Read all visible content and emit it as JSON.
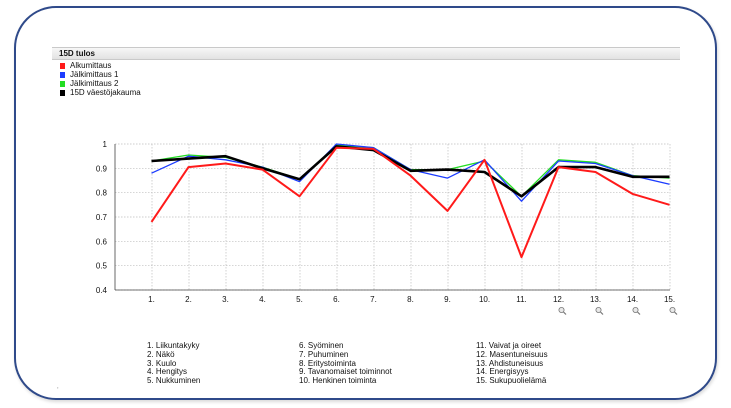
{
  "panel": {
    "title": "15D tulos"
  },
  "legend": [
    {
      "label": "Alkumittaus",
      "color": "#ff1a1a"
    },
    {
      "label": "Jälkimittaus 1",
      "color": "#1c3cff"
    },
    {
      "label": "Jälkimittaus 2",
      "color": "#22dd22"
    },
    {
      "label": "15D väestöjakauma",
      "color": "#000000"
    }
  ],
  "chart_data": {
    "type": "line",
    "categories": [
      "1.",
      "2.",
      "3.",
      "4.",
      "5.",
      "6.",
      "7.",
      "8.",
      "9.",
      "10.",
      "11.",
      "12.",
      "13.",
      "14.",
      "15."
    ],
    "ylim": [
      0.4,
      1
    ],
    "yticks": [
      "0.4",
      "0.5",
      "0.6",
      "0.7",
      "0.8",
      "0.9",
      "1"
    ],
    "grid": true,
    "series": [
      {
        "name": "Jälkimittaus 2",
        "color": "#22dd22",
        "values": [
          0.93,
          0.955,
          0.945,
          0.905,
          0.855,
          0.995,
          0.985,
          0.895,
          0.895,
          0.93,
          0.785,
          0.935,
          0.925,
          0.87,
          0.86
        ]
      },
      {
        "name": "Jälkimittaus 1",
        "color": "#1c3cff",
        "values": [
          0.88,
          0.95,
          0.935,
          0.905,
          0.845,
          1.0,
          0.985,
          0.895,
          0.86,
          0.935,
          0.765,
          0.93,
          0.92,
          0.87,
          0.835
        ]
      },
      {
        "name": "15D väestöjakauma",
        "color": "#000000",
        "values": [
          0.93,
          0.94,
          0.95,
          0.9,
          0.855,
          0.99,
          0.975,
          0.89,
          0.895,
          0.885,
          0.785,
          0.905,
          0.905,
          0.865,
          0.865
        ]
      },
      {
        "name": "Alkumittaus",
        "color": "#ff1a1a",
        "values": [
          0.68,
          0.905,
          0.92,
          0.895,
          0.785,
          0.985,
          0.98,
          0.87,
          0.725,
          0.935,
          0.535,
          0.905,
          0.885,
          0.795,
          0.75
        ]
      }
    ],
    "zoom_icons": [
      "zoom-in-icon",
      "zoom-in-icon",
      "zoom-out-icon",
      "zoom-out-icon"
    ]
  },
  "dimensions": {
    "col1": [
      "1. Liikuntakyky",
      "2. Näkö",
      "3. Kuulo",
      "4. Hengitys",
      "5. Nukkuminen"
    ],
    "col2": [
      "6. Syöminen",
      "7. Puhuminen",
      "8. Eritystoiminta",
      "9. Tavanomaiset toiminnot",
      "10. Henkinen toiminta"
    ],
    "col3": [
      "11. Vaivat ja oireet",
      "12. Masentuneisuus",
      "13. Ahdistuneisuus",
      "14. Energisyys",
      "15. Sukupuolielämä"
    ]
  }
}
